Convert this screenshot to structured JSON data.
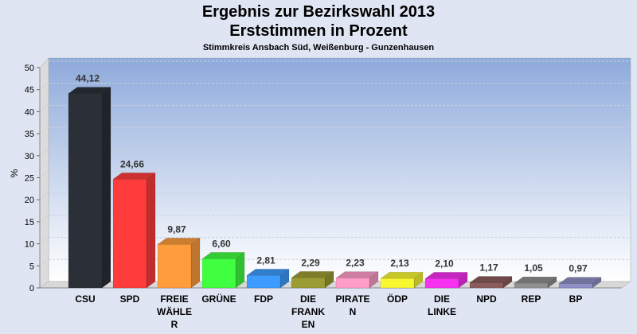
{
  "chart_data": {
    "type": "bar",
    "title": "Ergebnis zur Bezirkswahl 2013",
    "subtitle": "Erststimmen in Prozent",
    "subsubtitle": "Stimmkreis Ansbach Süd, Weißenburg - Gunzenhausen",
    "xlabel": "",
    "ylabel": "%",
    "ylim": [
      0,
      50
    ],
    "yticks": [
      0,
      5,
      10,
      15,
      20,
      25,
      30,
      35,
      40,
      45,
      50
    ],
    "categories": [
      "CSU",
      "SPD",
      "FREIE WÄHLER",
      "GRÜNE",
      "FDP",
      "DIE FRANKEN",
      "PIRATEN",
      "ÖDP",
      "DIE LINKE",
      "NPD",
      "REP",
      "BP"
    ],
    "category_lines": [
      [
        "CSU"
      ],
      [
        "SPD"
      ],
      [
        "FREIE",
        "WÄHLE",
        "R"
      ],
      [
        "GRÜNE"
      ],
      [
        "FDP"
      ],
      [
        "DIE",
        "FRANK",
        "EN"
      ],
      [
        "PIRATE",
        "N"
      ],
      [
        "ÖDP"
      ],
      [
        "DIE",
        "LINKE"
      ],
      [
        "NPD"
      ],
      [
        "REP"
      ],
      [
        "BP"
      ]
    ],
    "values": [
      44.12,
      24.66,
      9.87,
      6.6,
      2.81,
      2.29,
      2.23,
      2.13,
      2.1,
      1.17,
      1.05,
      0.97
    ],
    "labels": [
      "44,12",
      "24,66",
      "9,87",
      "6,60",
      "2,81",
      "2,29",
      "2,23",
      "2,13",
      "2,10",
      "1,17",
      "1,05",
      "0,97"
    ],
    "colors": [
      "#2b2f38",
      "#ff3c3c",
      "#ff9c3c",
      "#40ff40",
      "#3c9cff",
      "#9c9c34",
      "#ff9cc8",
      "#f8f830",
      "#f830f0",
      "#8c5c5c",
      "#909090",
      "#9090c8"
    ],
    "grid": true,
    "legend": "none"
  }
}
